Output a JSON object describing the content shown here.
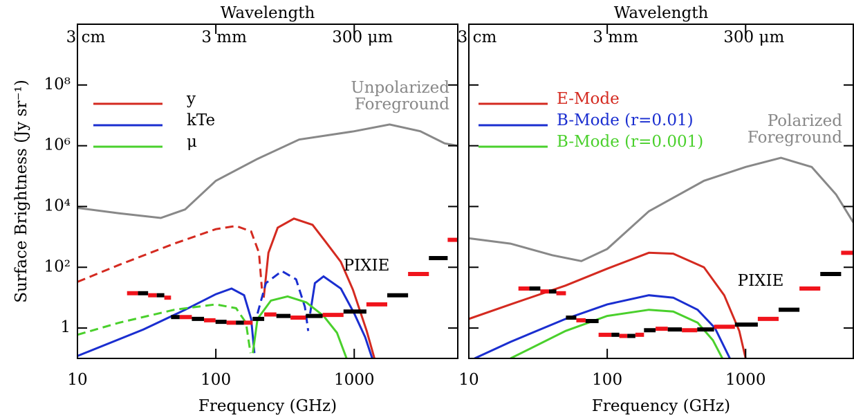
{
  "chart_data": [
    {
      "type": "line",
      "xlabel": "Frequency (GHz)",
      "x2label": "Wavelength",
      "ylabel": "Surface Brightness (Jy sr⁻¹)",
      "xlog": true,
      "ylog": true,
      "xlim": [
        10,
        5600
      ],
      "ylim": [
        0.1,
        10000000000
      ],
      "xticks": [
        10,
        100,
        1000
      ],
      "x2ticks": [
        {
          "value": 10,
          "label": "3 cm"
        },
        {
          "value": 100,
          "label": "3 mm"
        },
        {
          "value": 1000,
          "label": "300 μm"
        }
      ],
      "yticks": [
        1,
        {
          "value": 100,
          "label": "10²"
        },
        {
          "value": 10000,
          "label": "10⁴"
        },
        {
          "value": 1000000,
          "label": "10⁶"
        },
        {
          "value": 100000000,
          "label": "10⁸"
        }
      ],
      "ytick_labels": true,
      "legend_colored_text": false,
      "annotations": [
        "Unpolarized",
        "Foreground",
        "PIXIE"
      ],
      "series": [
        {
          "color": "#888888",
          "x": [
            10,
            20,
            40,
            60,
            100,
            200,
            400,
            1000,
            1800,
            3000,
            4500,
            5600
          ],
          "values": [
            9000,
            6000,
            4200,
            8000,
            70000,
            370000,
            1600000,
            3000000,
            5000000,
            3000000,
            1200000,
            1000000
          ]
        },
        {
          "color": "#d42a20",
          "dashed": true,
          "x": [
            10,
            20,
            50,
            100,
            140,
            180,
            205,
            215
          ],
          "values": [
            33,
            120,
            600,
            1800,
            2300,
            1500,
            300,
            20
          ]
        },
        {
          "name": "y",
          "color": "#d42a20",
          "x": [
            222,
            240,
            280,
            367,
            500,
            620,
            800,
            980,
            1230,
            1400
          ],
          "values": [
            10,
            300,
            2000,
            4000,
            2500,
            700,
            150,
            18,
            0.8,
            0.1
          ]
        },
        {
          "name": "kTe",
          "color": "#1a2ed0",
          "x": [
            10,
            30,
            60,
            100,
            130,
            160,
            180,
            190,
            300,
            480,
            520,
            600,
            800,
            1000,
            1200,
            1350
          ],
          "values": [
            0.12,
            0.9,
            4,
            13,
            20,
            12,
            2,
            0.15,
            null,
            3,
            30,
            50,
            20,
            3,
            0.5,
            0.1
          ]
        },
        {
          "color": "#1a2ed0",
          "dashed": true,
          "x": [
            200,
            230,
            300,
            380,
            440,
            465
          ],
          "values": [
            3,
            30,
            75,
            40,
            5,
            0.8
          ]
        },
        {
          "color": "#4ad02c",
          "dashed": true,
          "x": [
            10,
            20,
            50,
            100,
            140,
            165,
            178
          ],
          "values": [
            0.6,
            1.5,
            4,
            6,
            4.5,
            1.5,
            0.15
          ]
        },
        {
          "name": "μ",
          "color": "#4ad02c",
          "x": [
            185,
            200,
            250,
            330,
            450,
            600,
            750,
            880
          ],
          "values": [
            0.15,
            2,
            8,
            11,
            7,
            2.5,
            0.7,
            0.1
          ]
        }
      ],
      "pixie": {
        "colors": [
          "#f0141c",
          "#000000"
        ],
        "x": [
          25,
          30,
          35,
          40,
          45,
          50,
          60,
          75,
          90,
          110,
          130,
          150,
          170,
          200,
          250,
          300,
          400,
          500,
          700,
          1000,
          1500,
          2000,
          3000,
          4000,
          5600
        ],
        "values": [
          14,
          14,
          12,
          12,
          10,
          2.3,
          2.3,
          2,
          1.8,
          1.6,
          1.5,
          1.5,
          1.5,
          2,
          2.8,
          2.5,
          2.2,
          2.5,
          2.7,
          3.5,
          6,
          12,
          60,
          200,
          800
        ]
      }
    },
    {
      "type": "line",
      "xlabel": "Frequency (GHz)",
      "x2label": "Wavelength",
      "xlog": true,
      "ylog": true,
      "xlim": [
        10,
        6000
      ],
      "ylim": [
        0.1,
        10000000000
      ],
      "xticks": [
        10,
        100,
        1000
      ],
      "x2ticks": [
        {
          "value": 10,
          "label": "3 cm"
        },
        {
          "value": 100,
          "label": "3 mm"
        },
        {
          "value": 1000,
          "label": "300 μm"
        }
      ],
      "yticks": [
        1,
        100,
        10000,
        1000000,
        100000000
      ],
      "ytick_labels": false,
      "legend_colored_text": true,
      "annotations": [
        "Polarized",
        "Foreground",
        "PIXIE"
      ],
      "series": [
        {
          "color": "#888888",
          "x": [
            10,
            20,
            40,
            65,
            100,
            200,
            500,
            1000,
            1800,
            3000,
            4500,
            6000
          ],
          "values": [
            900,
            600,
            250,
            160,
            400,
            7000,
            70000,
            200000,
            400000,
            200000,
            25000,
            3000
          ]
        },
        {
          "name": "E-Mode",
          "color": "#d42a20",
          "x": [
            10,
            20,
            50,
            100,
            200,
            300,
            500,
            700,
            900,
            1000
          ],
          "values": [
            2,
            6,
            25,
            90,
            300,
            280,
            100,
            12,
            0.8,
            0.1
          ]
        },
        {
          "name": "B-Mode (r=0.01)",
          "color": "#1a2ed0",
          "x": [
            11,
            20,
            50,
            100,
            200,
            300,
            450,
            600,
            770
          ],
          "values": [
            0.1,
            0.35,
            2,
            6,
            12,
            10,
            4,
            1,
            0.1
          ]
        },
        {
          "name": "B-Mode (r=0.001)",
          "color": "#4ad02c",
          "x": [
            20,
            50,
            100,
            200,
            300,
            450,
            580,
            680
          ],
          "values": [
            0.1,
            0.8,
            2.5,
            4,
            3.5,
            1.5,
            0.4,
            0.1
          ]
        }
      ],
      "pixie": {
        "colors": [
          "#f0141c",
          "#000000"
        ],
        "x": [
          25,
          30,
          36,
          40,
          46,
          55,
          65,
          75,
          100,
          115,
          130,
          150,
          170,
          200,
          250,
          300,
          400,
          500,
          700,
          1000,
          1500,
          2000,
          3000,
          4000,
          6000
        ],
        "values": [
          20,
          20,
          16,
          16,
          14,
          2.2,
          1.8,
          1.7,
          0.6,
          0.6,
          0.55,
          0.55,
          0.6,
          0.85,
          0.95,
          0.9,
          0.85,
          0.9,
          1.1,
          1.3,
          2,
          4,
          20,
          60,
          300
        ]
      }
    }
  ]
}
